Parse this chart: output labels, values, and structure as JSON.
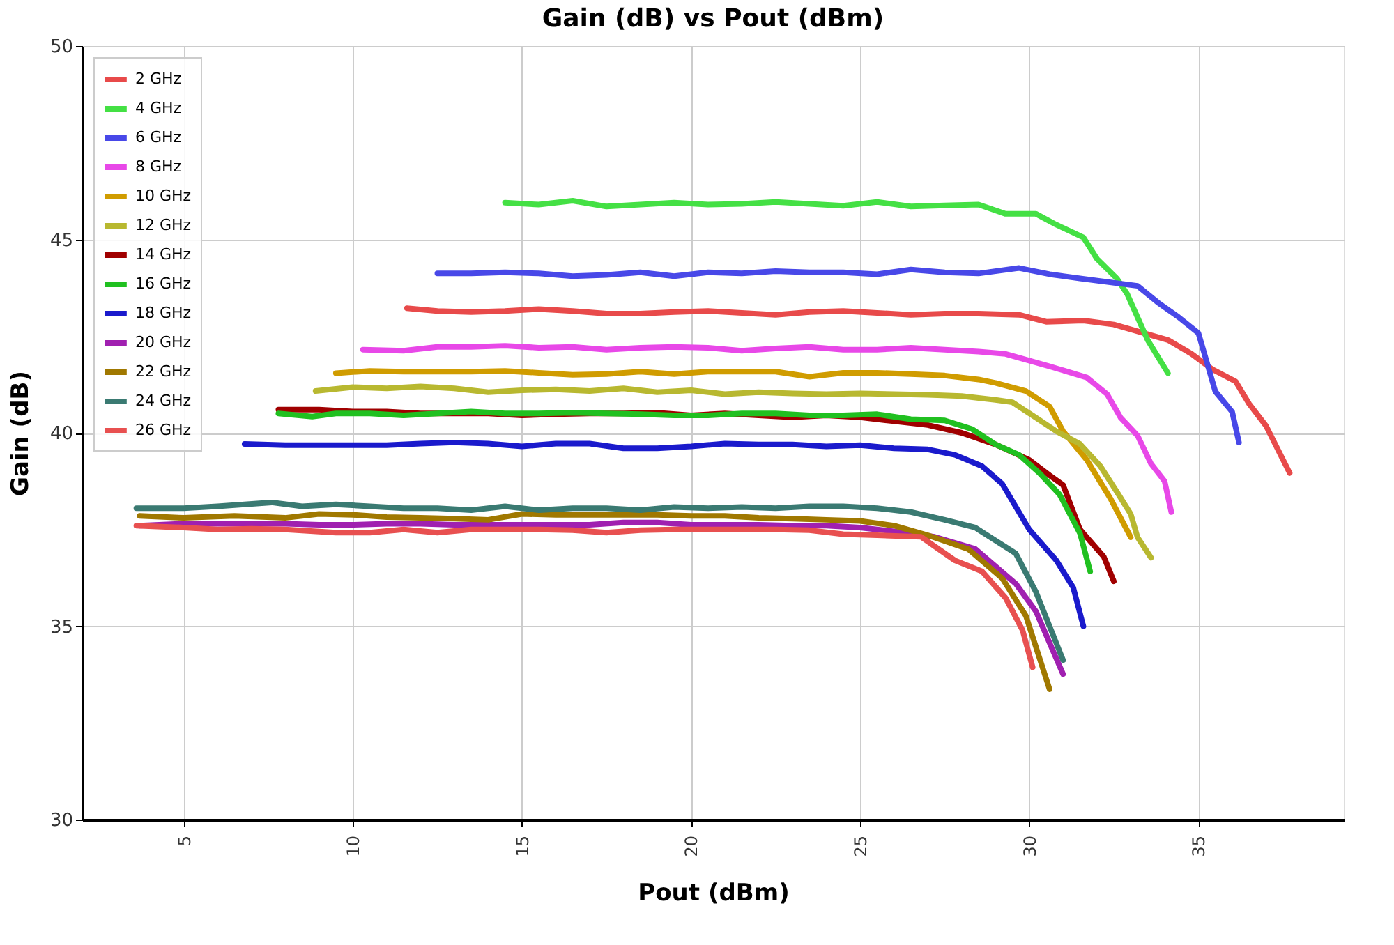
{
  "chart_data": {
    "type": "line",
    "title": "Gain (dB) vs Pout (dBm)",
    "xlabel": "Pout (dBm)",
    "ylabel": "Gain (dB)",
    "xlim": [
      2,
      39.3
    ],
    "xticks": [
      5,
      10,
      15,
      20,
      25,
      30,
      35
    ],
    "ylim": [
      30,
      50
    ],
    "yticks": [
      30,
      35,
      40,
      45,
      50
    ],
    "grid": true,
    "legend": "top left",
    "line_style": "solid",
    "marker": "none",
    "series": [
      {
        "name": "2 GHz",
        "color": "#e84a4a",
        "x": [
          11.6,
          12.5,
          13.5,
          14.5,
          15.5,
          16.5,
          17.5,
          18.5,
          19.5,
          20.5,
          21.5,
          22.5,
          23.5,
          24.5,
          25.5,
          26.5,
          27.5,
          28.5,
          29.7,
          30.5,
          31.6,
          32.5,
          34.1,
          34.8,
          35.4,
          36.1,
          36.5,
          37.0,
          37.7
        ],
        "values": [
          43.22,
          43.15,
          43.12,
          43.15,
          43.2,
          43.15,
          43.08,
          43.08,
          43.12,
          43.15,
          43.1,
          43.05,
          43.12,
          43.15,
          43.1,
          43.05,
          43.08,
          43.08,
          43.05,
          42.87,
          42.9,
          42.8,
          42.4,
          42.04,
          41.65,
          41.33,
          40.75,
          40.18,
          38.96
        ]
      },
      {
        "name": "4 GHz",
        "color": "#44e044",
        "x": [
          14.5,
          15.5,
          16.5,
          17.5,
          18.5,
          19.5,
          20.5,
          21.5,
          22.5,
          23.5,
          24.5,
          25.5,
          26.5,
          27.5,
          28.5,
          29.3,
          30.2,
          30.8,
          31.6,
          32.0,
          32.6,
          32.9,
          33.5,
          34.1
        ],
        "values": [
          45.95,
          45.9,
          46.0,
          45.85,
          45.9,
          45.95,
          45.9,
          45.92,
          45.97,
          45.92,
          45.87,
          45.97,
          45.85,
          45.88,
          45.9,
          45.66,
          45.66,
          45.38,
          45.05,
          44.5,
          43.98,
          43.58,
          42.4,
          41.54
        ]
      },
      {
        "name": "6 GHz",
        "color": "#4848e8",
        "x": [
          12.5,
          13.5,
          14.5,
          15.5,
          16.5,
          17.5,
          18.5,
          19.5,
          20.5,
          21.5,
          22.5,
          23.5,
          24.5,
          25.5,
          26.5,
          27.5,
          28.5,
          29.7,
          30.6,
          31.5,
          33.2,
          33.8,
          34.4,
          35.0,
          35.5,
          36.0,
          36.2
        ],
        "values": [
          44.12,
          44.12,
          44.15,
          44.12,
          44.05,
          44.08,
          44.15,
          44.05,
          44.15,
          44.12,
          44.18,
          44.15,
          44.15,
          44.1,
          44.22,
          44.15,
          44.12,
          44.26,
          44.1,
          43.99,
          43.8,
          43.37,
          43.0,
          42.58,
          41.07,
          40.54,
          39.75
        ]
      },
      {
        "name": "8 GHz",
        "color": "#e848e8",
        "x": [
          10.3,
          11.5,
          12.5,
          13.5,
          14.5,
          15.5,
          16.5,
          17.5,
          18.5,
          19.5,
          20.5,
          21.5,
          22.5,
          23.5,
          24.5,
          25.5,
          26.5,
          27.5,
          28.5,
          29.3,
          30.6,
          31.7,
          32.3,
          32.7,
          33.2,
          33.6,
          34.0,
          34.2
        ],
        "values": [
          42.15,
          42.12,
          42.22,
          42.22,
          42.25,
          42.2,
          42.22,
          42.15,
          42.2,
          42.22,
          42.2,
          42.12,
          42.18,
          42.22,
          42.15,
          42.15,
          42.2,
          42.15,
          42.1,
          42.04,
          41.72,
          41.43,
          41.0,
          40.39,
          39.93,
          39.2,
          38.75,
          37.95
        ]
      },
      {
        "name": "10 GHz",
        "color": "#d09c00",
        "x": [
          9.5,
          10.5,
          11.5,
          12.5,
          13.5,
          14.5,
          15.5,
          16.5,
          17.5,
          18.5,
          19.5,
          20.5,
          21.5,
          22.5,
          23.5,
          24.5,
          25.5,
          26.5,
          27.5,
          28.5,
          29.0,
          29.9,
          30.6,
          31.0,
          31.7,
          32.4,
          33.0
        ],
        "values": [
          41.54,
          41.6,
          41.58,
          41.58,
          41.58,
          41.6,
          41.55,
          41.5,
          41.52,
          41.58,
          41.52,
          41.58,
          41.58,
          41.58,
          41.45,
          41.55,
          41.55,
          41.52,
          41.48,
          41.38,
          41.29,
          41.08,
          40.68,
          40.04,
          39.3,
          38.3,
          37.3
        ]
      },
      {
        "name": "12 GHz",
        "color": "#b8b830",
        "x": [
          8.9,
          10,
          11,
          12,
          13,
          14,
          15,
          16,
          17,
          18,
          19,
          20,
          21,
          22,
          23,
          24,
          25,
          26,
          27,
          28,
          29.0,
          29.5,
          30.2,
          30.8,
          31.5,
          32.1,
          32.6,
          33.0,
          33.2,
          33.6
        ],
        "values": [
          41.08,
          41.18,
          41.15,
          41.2,
          41.15,
          41.05,
          41.1,
          41.12,
          41.08,
          41.15,
          41.05,
          41.1,
          41.0,
          41.05,
          41.02,
          41.0,
          41.02,
          41.0,
          40.98,
          40.95,
          40.85,
          40.79,
          40.39,
          40.04,
          39.71,
          39.14,
          38.46,
          37.9,
          37.3,
          36.77
        ]
      },
      {
        "name": "14 GHz",
        "color": "#a00000",
        "x": [
          7.8,
          9,
          10,
          11,
          12,
          13,
          14,
          15,
          16,
          17,
          18,
          19,
          20,
          21,
          22,
          23,
          24,
          25,
          26,
          27,
          28,
          29,
          30.0,
          30.6,
          31.0,
          31.5,
          32.2,
          32.5
        ],
        "values": [
          40.6,
          40.6,
          40.55,
          40.55,
          40.5,
          40.5,
          40.5,
          40.45,
          40.48,
          40.5,
          40.5,
          40.52,
          40.45,
          40.5,
          40.45,
          40.4,
          40.45,
          40.4,
          40.3,
          40.2,
          40.0,
          39.7,
          39.3,
          38.9,
          38.65,
          37.5,
          36.8,
          36.16
        ]
      },
      {
        "name": "16 GHz",
        "color": "#20c020",
        "x": [
          7.8,
          8.8,
          9.5,
          10.5,
          11.5,
          12.5,
          13.5,
          14.5,
          15.5,
          16.5,
          17.5,
          18.5,
          19.5,
          20.5,
          21.5,
          22.5,
          23.5,
          24.5,
          25.5,
          26.5,
          27.5,
          28.3,
          29.0,
          29.7,
          30.3,
          30.9,
          31.5,
          31.8
        ],
        "values": [
          40.5,
          40.42,
          40.5,
          40.5,
          40.45,
          40.5,
          40.55,
          40.5,
          40.5,
          40.52,
          40.5,
          40.48,
          40.45,
          40.45,
          40.5,
          40.5,
          40.45,
          40.45,
          40.48,
          40.35,
          40.32,
          40.1,
          39.7,
          39.43,
          38.96,
          38.4,
          37.4,
          36.42
        ]
      },
      {
        "name": "18 GHz",
        "color": "#1a1acc",
        "x": [
          6.8,
          8,
          9,
          10,
          11,
          12,
          13,
          14,
          15,
          16,
          17,
          18,
          19,
          20,
          21,
          22,
          23,
          24,
          25,
          26,
          27,
          27.8,
          28.6,
          29.2,
          30.0,
          30.8,
          31.3,
          31.6
        ],
        "values": [
          39.71,
          39.68,
          39.68,
          39.68,
          39.68,
          39.72,
          39.75,
          39.72,
          39.65,
          39.72,
          39.72,
          39.6,
          39.6,
          39.65,
          39.72,
          39.7,
          39.7,
          39.65,
          39.68,
          39.6,
          39.57,
          39.43,
          39.14,
          38.68,
          37.5,
          36.7,
          36.0,
          35.0
        ]
      },
      {
        "name": "20 GHz",
        "color": "#a020b0",
        "x": [
          3.7,
          5,
          6.5,
          8,
          9,
          10,
          11,
          12,
          13,
          14,
          15,
          16,
          17,
          18,
          19,
          20,
          21,
          22,
          23,
          24,
          25,
          26,
          27.2,
          28.4,
          29.6,
          30.2,
          31.0
        ],
        "values": [
          37.6,
          37.65,
          37.65,
          37.65,
          37.62,
          37.62,
          37.65,
          37.65,
          37.62,
          37.62,
          37.62,
          37.62,
          37.62,
          37.68,
          37.68,
          37.62,
          37.62,
          37.62,
          37.6,
          37.6,
          37.55,
          37.45,
          37.31,
          37.0,
          36.1,
          35.38,
          33.76
        ]
      },
      {
        "name": "22 GHz",
        "color": "#a07800",
        "x": [
          3.7,
          5,
          6.5,
          8,
          9,
          10,
          11,
          12,
          13,
          14,
          15,
          16,
          17,
          18,
          19,
          20,
          21,
          22,
          23,
          24,
          25,
          26,
          27,
          28.2,
          29.2,
          29.9,
          30.6
        ],
        "values": [
          37.85,
          37.8,
          37.85,
          37.8,
          37.9,
          37.88,
          37.82,
          37.8,
          37.78,
          37.75,
          37.9,
          37.88,
          37.88,
          37.88,
          37.88,
          37.85,
          37.85,
          37.8,
          37.78,
          37.75,
          37.72,
          37.6,
          37.35,
          36.99,
          36.24,
          35.27,
          33.37
        ]
      },
      {
        "name": "24 GHz",
        "color": "#3a7a72",
        "x": [
          3.6,
          5,
          6,
          7.6,
          8.5,
          9.5,
          10.5,
          11.5,
          12.5,
          13.5,
          14.5,
          15.5,
          16.5,
          17.5,
          18.5,
          19.5,
          20.5,
          21.5,
          22.5,
          23.5,
          24.5,
          25.5,
          26.5,
          27.5,
          28.4,
          29.6,
          30.2,
          31.0
        ],
        "values": [
          38.05,
          38.05,
          38.1,
          38.2,
          38.1,
          38.15,
          38.1,
          38.05,
          38.05,
          38.0,
          38.1,
          38.0,
          38.05,
          38.05,
          38.0,
          38.08,
          38.05,
          38.08,
          38.05,
          38.1,
          38.1,
          38.05,
          37.95,
          37.75,
          37.55,
          36.88,
          35.88,
          34.12
        ]
      },
      {
        "name": "26 GHz",
        "color": "#e85050",
        "x": [
          3.6,
          5,
          6,
          7,
          8,
          9.5,
          10.5,
          11.5,
          12.5,
          13.5,
          14.5,
          15.5,
          16.5,
          17.5,
          18.5,
          19.5,
          20.5,
          21.5,
          22.5,
          23.5,
          24.5,
          25.5,
          26.8,
          27.8,
          28.6,
          29.3,
          29.8,
          30.1
        ],
        "values": [
          37.6,
          37.55,
          37.5,
          37.52,
          37.5,
          37.42,
          37.42,
          37.5,
          37.42,
          37.5,
          37.5,
          37.5,
          37.48,
          37.42,
          37.48,
          37.5,
          37.5,
          37.5,
          37.5,
          37.48,
          37.38,
          37.35,
          37.31,
          36.7,
          36.42,
          35.73,
          34.9,
          33.94
        ]
      }
    ]
  }
}
